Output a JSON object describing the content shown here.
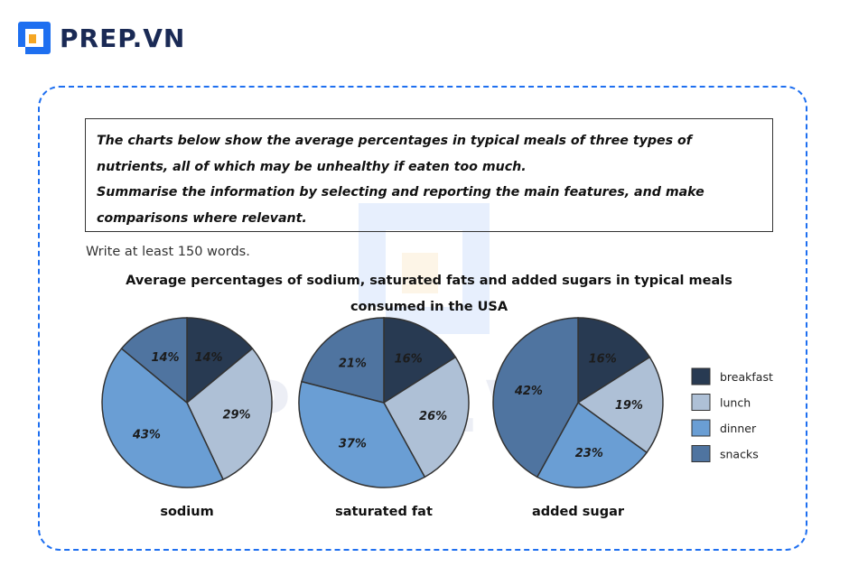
{
  "brand": {
    "name": "PREP.VN"
  },
  "task": {
    "prompt_lines": [
      "The charts below show the average percentages in typical meals of three types of",
      "nutrients, all of which may be unhealthy if eaten too much.",
      "Summarise the information by selecting and reporting the main features, and make",
      "comparisons where relevant."
    ],
    "instruction": "Write at least 150 words."
  },
  "chart_data": {
    "type": "pie",
    "title_lines": [
      "Average percentages of sodium, saturated fats and added sugars in typical meals",
      "consumed in the USA"
    ],
    "categories": [
      "breakfast",
      "lunch",
      "dinner",
      "snacks"
    ],
    "colors": [
      "#283a52",
      "#aec0d6",
      "#6a9ed4",
      "#4f74a0"
    ],
    "legend_position": "right",
    "series": [
      {
        "name": "sodium",
        "values": [
          14,
          29,
          43,
          14
        ],
        "labels": [
          "14%",
          "29%",
          "43%",
          "14%"
        ]
      },
      {
        "name": "saturated fat",
        "values": [
          16,
          26,
          37,
          21
        ],
        "labels": [
          "16%",
          "26%",
          "37%",
          "21%"
        ]
      },
      {
        "name": "added sugar",
        "values": [
          16,
          19,
          23,
          42
        ],
        "labels": [
          "16%",
          "19%",
          "23%",
          "42%"
        ]
      }
    ]
  }
}
